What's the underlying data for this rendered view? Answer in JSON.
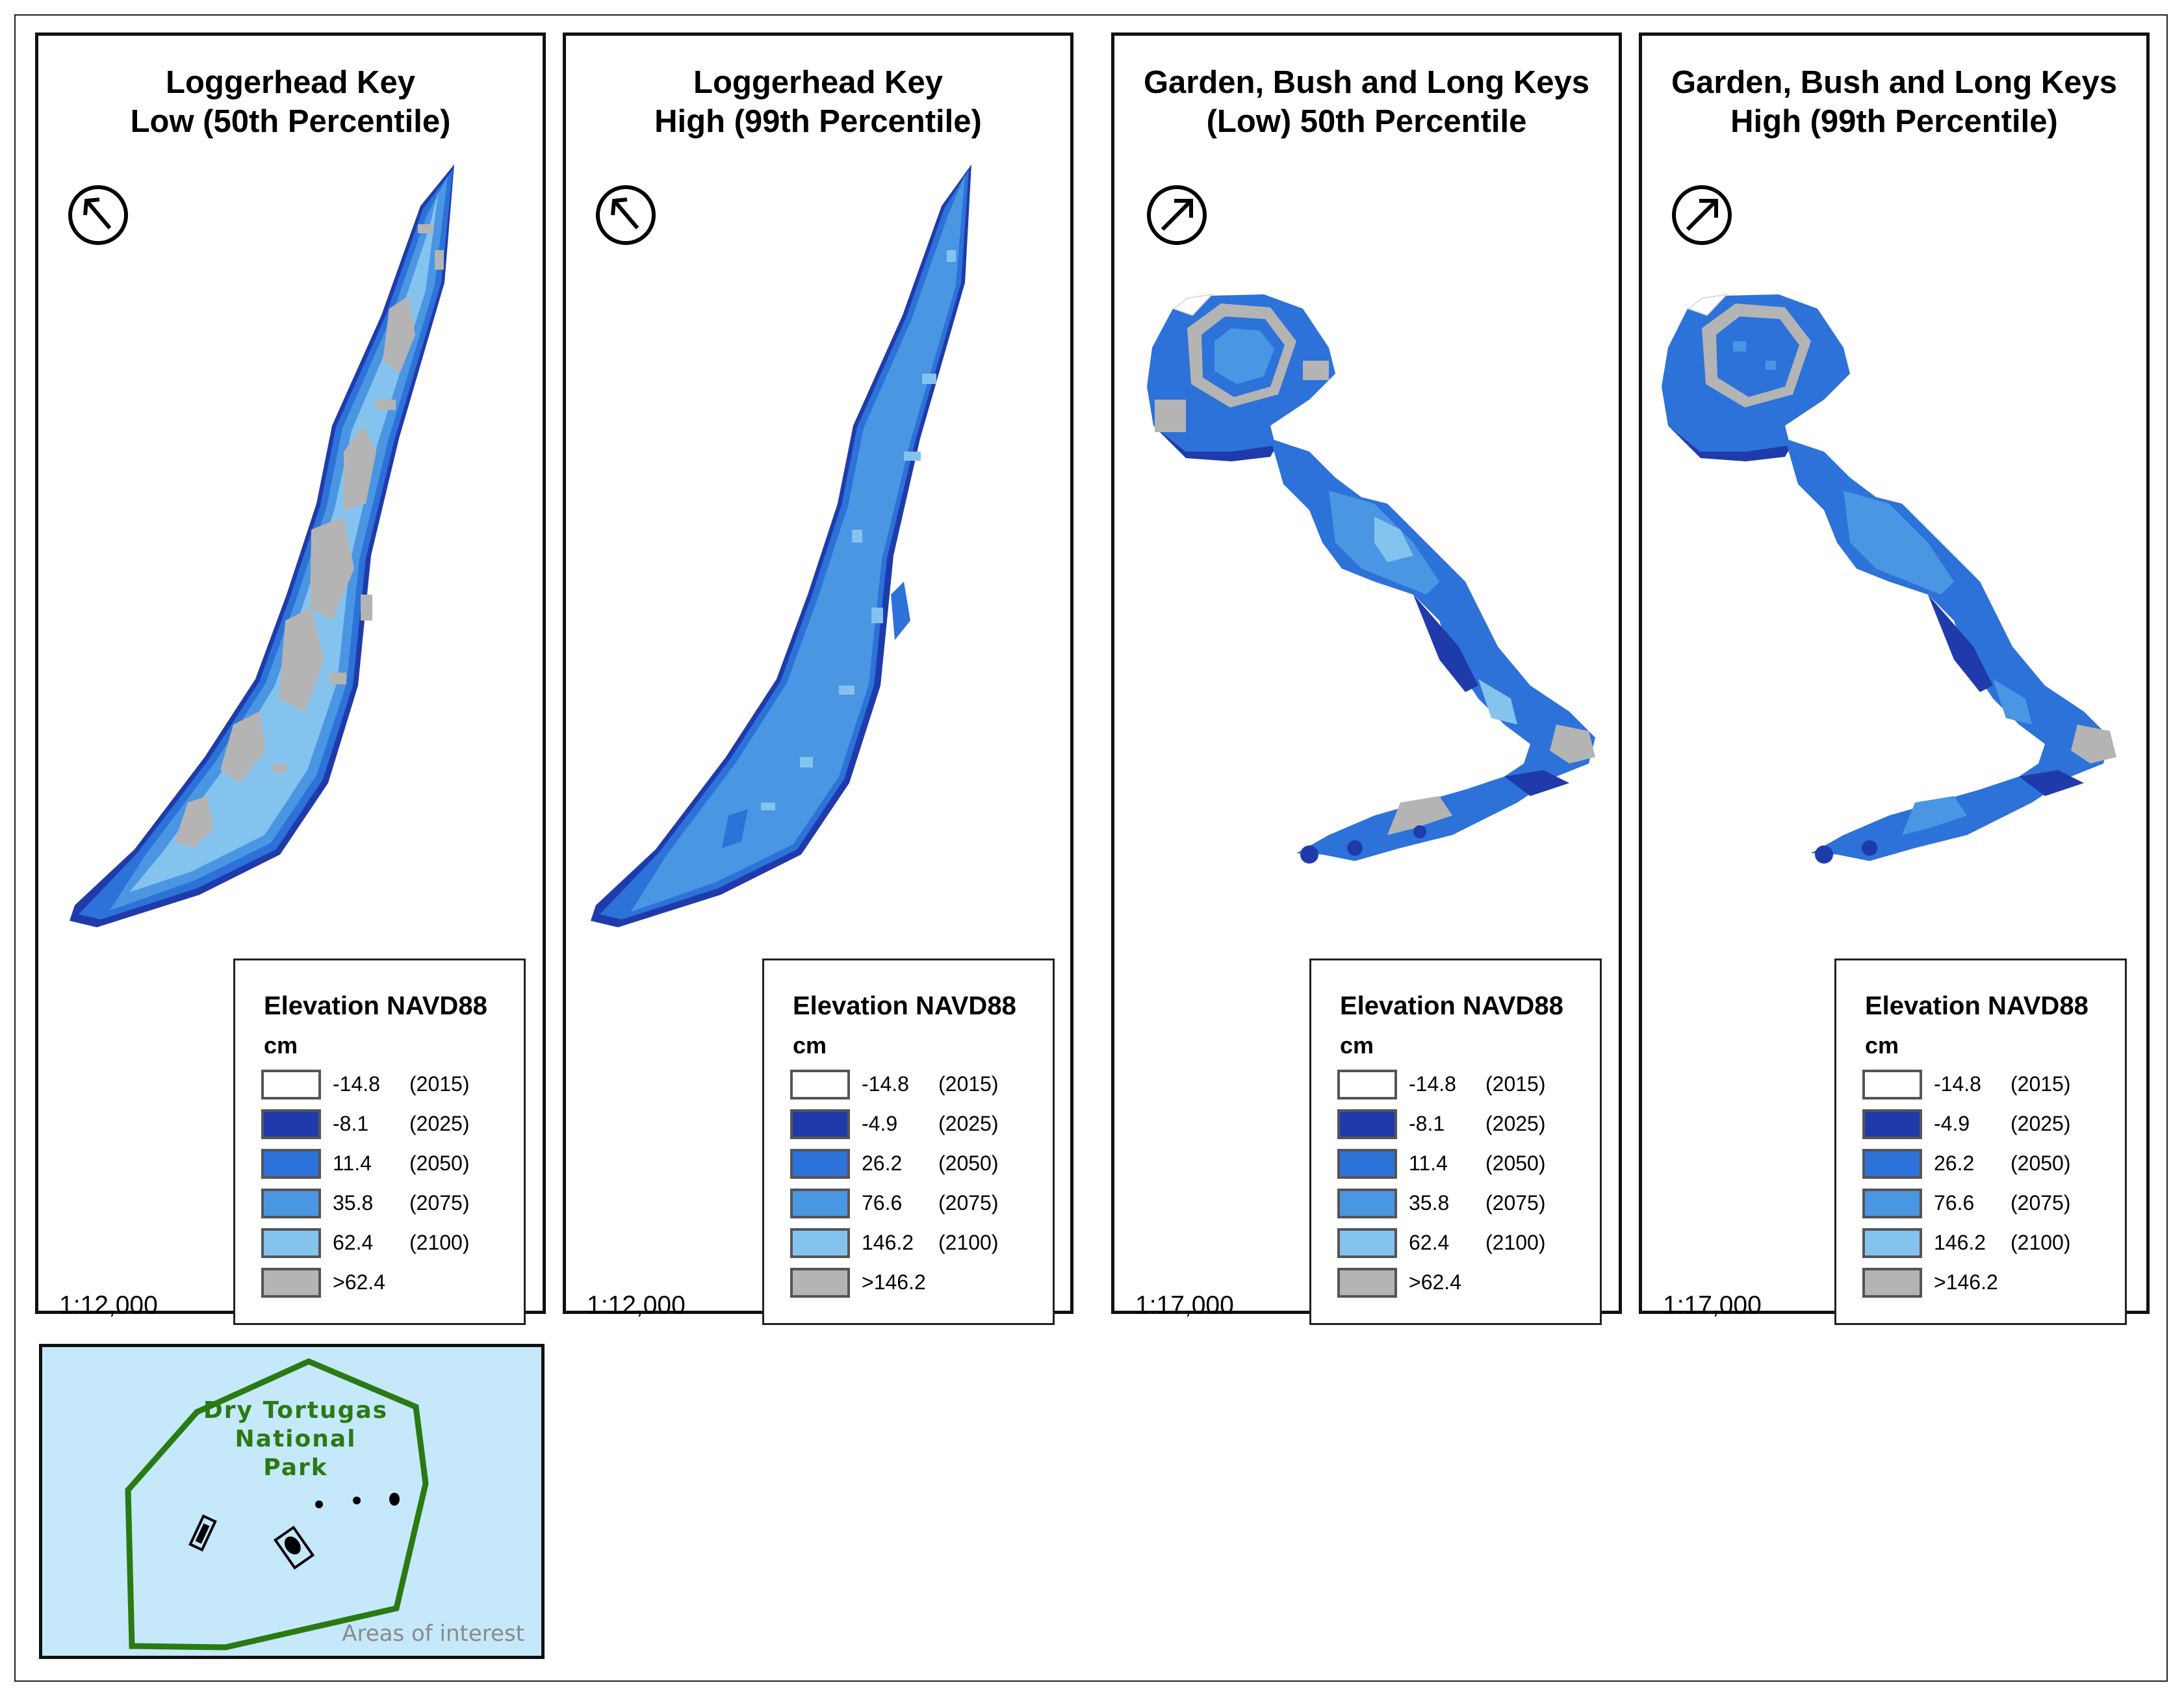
{
  "colors": {
    "c2015": "#ffffff",
    "c2025": "#1f3bab",
    "c2050": "#2c72d9",
    "c2075": "#4b96e3",
    "c2100": "#85c3ef",
    "above": "#b4b4b4",
    "inset_water": "#c5e8fb",
    "park_boundary": "#2a7a12"
  },
  "panels": [
    {
      "title_line1": "Loggerhead Key",
      "title_line2": "Low (50th Percentile)",
      "north_arrow": "north-arrow-icon",
      "scale": "1:12,000",
      "legend": {
        "title": "Elevation NAVD88",
        "unit": "cm",
        "rows": [
          {
            "value": "-14.8",
            "year": "(2015)"
          },
          {
            "value": "-8.1",
            "year": "(2025)"
          },
          {
            "value": "11.4",
            "year": "(2050)"
          },
          {
            "value": "35.8",
            "year": "(2075)"
          },
          {
            "value": "62.4",
            "year": "(2100)"
          },
          {
            "value": ">62.4",
            "year": ""
          }
        ]
      }
    },
    {
      "title_line1": "Loggerhead Key",
      "title_line2": "High (99th Percentile)",
      "north_arrow": "north-arrow-icon",
      "scale": "1:12,000",
      "legend": {
        "title": "Elevation NAVD88",
        "unit": "cm",
        "rows": [
          {
            "value": "-14.8",
            "year": "(2015)"
          },
          {
            "value": "-4.9",
            "year": "(2025)"
          },
          {
            "value": "26.2",
            "year": "(2050)"
          },
          {
            "value": "76.6",
            "year": "(2075)"
          },
          {
            "value": "146.2",
            "year": "(2100)"
          },
          {
            "value": ">146.2",
            "year": ""
          }
        ]
      }
    },
    {
      "title_line1": "Garden, Bush and Long Keys",
      "title_line2": "(Low) 50th Percentile",
      "north_arrow": "north-arrow-icon",
      "scale": "1:17,000",
      "legend": {
        "title": "Elevation NAVD88",
        "unit": "cm",
        "rows": [
          {
            "value": "-14.8",
            "year": "(2015)"
          },
          {
            "value": "-8.1",
            "year": "(2025)"
          },
          {
            "value": "11.4",
            "year": "(2050)"
          },
          {
            "value": "35.8",
            "year": "(2075)"
          },
          {
            "value": "62.4",
            "year": "(2100)"
          },
          {
            "value": ">62.4",
            "year": ""
          }
        ]
      }
    },
    {
      "title_line1": "Garden, Bush and Long Keys",
      "title_line2": "High (99th Percentile)",
      "north_arrow": "north-arrow-icon",
      "scale": "1:17,000",
      "legend": {
        "title": "Elevation NAVD88",
        "unit": "cm",
        "rows": [
          {
            "value": "-14.8",
            "year": "(2015)"
          },
          {
            "value": "-4.9",
            "year": "(2025)"
          },
          {
            "value": "26.2",
            "year": "(2050)"
          },
          {
            "value": "76.6",
            "year": "(2075)"
          },
          {
            "value": "146.2",
            "year": "(2100)"
          },
          {
            "value": ">146.2",
            "year": ""
          }
        ]
      }
    }
  ],
  "inset": {
    "park_line1": "Dry Tortugas",
    "park_line2": "National Park",
    "areas_label": "Areas of interest"
  }
}
